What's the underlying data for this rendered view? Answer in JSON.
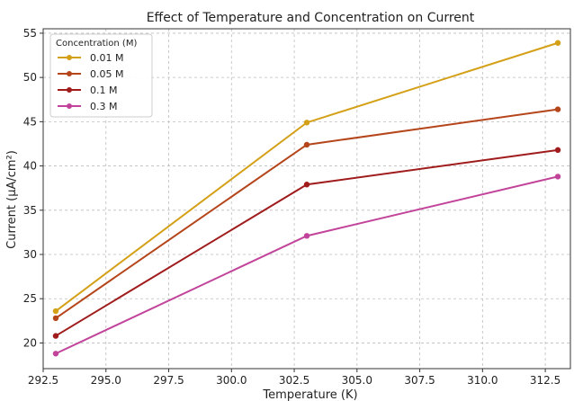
{
  "chart_data": {
    "type": "line",
    "title": "Effect of Temperature and Concentration on Current",
    "xlabel": "Temperature (K)",
    "ylabel": "Current (μA/cm²)",
    "x": [
      293,
      303,
      313
    ],
    "xlim": [
      292.5,
      313.5
    ],
    "ylim": [
      17.1,
      55.5
    ],
    "xticks": [
      "292.5",
      "295.0",
      "297.5",
      "300.0",
      "302.5",
      "305.0",
      "307.5",
      "310.0",
      "312.5"
    ],
    "yticks": [
      "20",
      "25",
      "30",
      "35",
      "40",
      "45",
      "50",
      "55"
    ],
    "grid": true,
    "legend": {
      "title": "Concentration (M)",
      "placement": "top-left"
    },
    "series": [
      {
        "name": "0.01 M",
        "color": "#d4a017",
        "values": [
          23.6,
          44.9,
          53.9
        ]
      },
      {
        "name": "0.05 M",
        "color": "#b5451b",
        "values": [
          22.8,
          42.4,
          46.4
        ]
      },
      {
        "name": "0.1 M",
        "color": "#a01c1c",
        "values": [
          20.8,
          37.9,
          41.8
        ]
      },
      {
        "name": "0.3 M",
        "color": "#c2449a",
        "values": [
          18.8,
          32.1,
          38.8
        ]
      }
    ]
  }
}
